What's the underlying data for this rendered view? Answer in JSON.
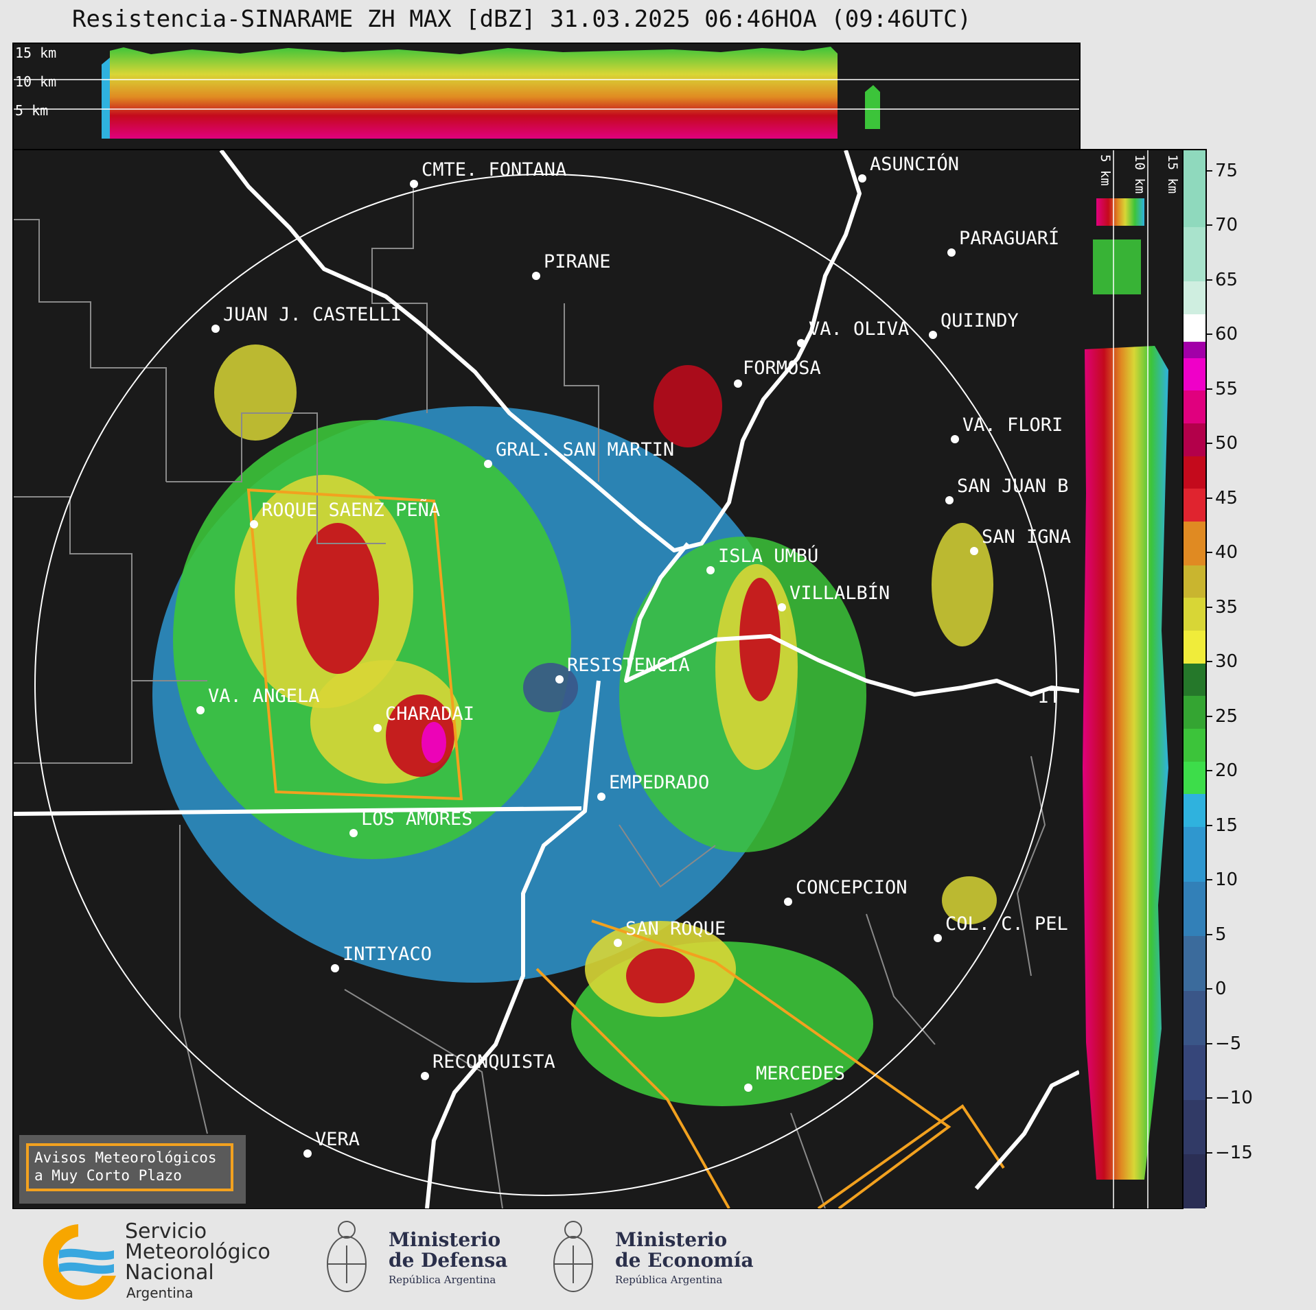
{
  "title": "Resistencia-SINARAME ZH MAX [dBZ] 31.03.2025 06:46HOA (09:46UTC)",
  "top_panel": {
    "height_labels": [
      "15 km",
      "10 km",
      "5 km"
    ]
  },
  "side_panel": {
    "height_labels": [
      "5 km",
      "10 km",
      "15 km"
    ]
  },
  "colorbar": {
    "ticks": [
      "75",
      "70",
      "65",
      "60",
      "55",
      "50",
      "45",
      "40",
      "35",
      "30",
      "25",
      "20",
      "15",
      "10",
      "5",
      "0",
      "−5",
      "−10",
      "−15"
    ],
    "range": [
      -20,
      77
    ],
    "bands": [
      {
        "from": -20,
        "to": -15,
        "color": "#2b2f55"
      },
      {
        "from": -15,
        "to": -10,
        "color": "#313a66"
      },
      {
        "from": -10,
        "to": -5,
        "color": "#36467a"
      },
      {
        "from": -5,
        "to": 0,
        "color": "#3a5688"
      },
      {
        "from": 0,
        "to": 5,
        "color": "#3b6b9c"
      },
      {
        "from": 5,
        "to": 10,
        "color": "#3280b8"
      },
      {
        "from": 10,
        "to": 15,
        "color": "#2f97cf"
      },
      {
        "from": 15,
        "to": 18,
        "color": "#2fb2de"
      },
      {
        "from": 18,
        "to": 21,
        "color": "#3ddd4a"
      },
      {
        "from": 21,
        "to": 24,
        "color": "#3cc43a"
      },
      {
        "from": 24,
        "to": 27,
        "color": "#34a532"
      },
      {
        "from": 27,
        "to": 30,
        "color": "#25782a"
      },
      {
        "from": 30,
        "to": 33,
        "color": "#f0ec3a"
      },
      {
        "from": 33,
        "to": 36,
        "color": "#d8d636"
      },
      {
        "from": 36,
        "to": 39,
        "color": "#c9b52f"
      },
      {
        "from": 39,
        "to": 43,
        "color": "#e08a22"
      },
      {
        "from": 43,
        "to": 46,
        "color": "#e0242f"
      },
      {
        "from": 46,
        "to": 49,
        "color": "#c40a1c"
      },
      {
        "from": 49,
        "to": 52,
        "color": "#b3004a"
      },
      {
        "from": 52,
        "to": 55,
        "color": "#e0007e"
      },
      {
        "from": 55,
        "to": 58,
        "color": "#ef00c8"
      },
      {
        "from": 58,
        "to": 59.5,
        "color": "#a200a8"
      },
      {
        "from": 59.5,
        "to": 62,
        "color": "#ffffff"
      },
      {
        "from": 62,
        "to": 65,
        "color": "#cfeee0"
      },
      {
        "from": 65,
        "to": 70,
        "color": "#a9e3cc"
      },
      {
        "from": 70,
        "to": 77,
        "color": "#8fd9bd"
      }
    ]
  },
  "map": {
    "cities": [
      {
        "name": "CMTE. FONTANA"
      },
      {
        "name": "ASUNCIÓN"
      },
      {
        "name": "PIRANE"
      },
      {
        "name": "PARAGUARÍ"
      },
      {
        "name": "JUAN J. CASTELLI"
      },
      {
        "name": "VA. OLIVA"
      },
      {
        "name": "QUIINDY"
      },
      {
        "name": "FORMOSA"
      },
      {
        "name": "VA. FLORI"
      },
      {
        "name": "GRAL. SAN MARTIN"
      },
      {
        "name": "SAN JUAN B"
      },
      {
        "name": "ROQUE SAENZ PEÑA"
      },
      {
        "name": "SAN IGNA"
      },
      {
        "name": "ISLA UMBÚ"
      },
      {
        "name": "VILLALBÍN"
      },
      {
        "name": "RESISTENCIA"
      },
      {
        "name": "VA. ANGELA"
      },
      {
        "name": "CHARADAI"
      },
      {
        "name": "IT"
      },
      {
        "name": "EMPEDRADO"
      },
      {
        "name": "LOS AMORES"
      },
      {
        "name": "CONCEPCION"
      },
      {
        "name": "SAN ROQUE"
      },
      {
        "name": "COL. C. PEL"
      },
      {
        "name": "INTIYACO"
      },
      {
        "name": "RECONQUISTA"
      },
      {
        "name": "MERCEDES"
      },
      {
        "name": "VERA"
      }
    ]
  },
  "legend": {
    "line1": "Avisos Meteorológicos",
    "line2": "a Muy Corto Plazo"
  },
  "footer": {
    "smn": {
      "line1": "Servicio",
      "line2": "Meteorológico",
      "line3": "Nacional",
      "line4": "Argentina"
    },
    "defensa": {
      "line1": "Ministerio",
      "line2": "de Defensa",
      "line3": "República Argentina"
    },
    "economia": {
      "line1": "Ministerio",
      "line2": "de Economía",
      "line3": "República Argentina"
    }
  }
}
